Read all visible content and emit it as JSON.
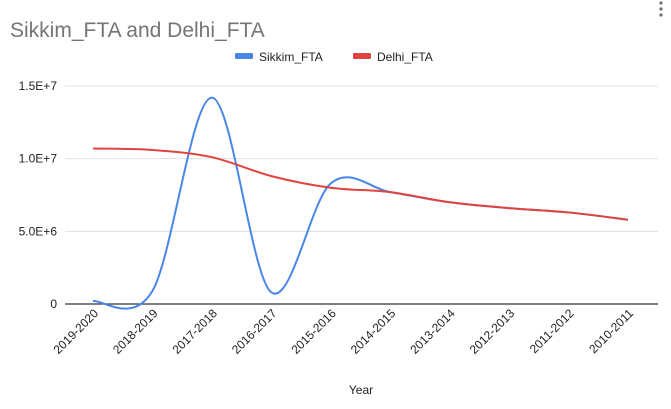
{
  "chart_data": {
    "type": "line",
    "title": "Sikkim_FTA and Delhi_FTA",
    "xlabel": "Year",
    "ylabel": "",
    "categories": [
      "2019-2020",
      "2018-2019",
      "2017-2018",
      "2016-2017",
      "2015-2016",
      "2014-2015",
      "2013-2014",
      "2012-2013",
      "2011-2012",
      "2010-2011"
    ],
    "yticks": [
      {
        "value": 0,
        "label": "0"
      },
      {
        "value": 5000000,
        "label": "5.0E+6"
      },
      {
        "value": 10000000,
        "label": "1.0E+7"
      },
      {
        "value": 15000000,
        "label": "1.5E+7"
      }
    ],
    "ylim": [
      0,
      15000000
    ],
    "grid": true,
    "legend": "top",
    "series": [
      {
        "name": "Sikkim_FTA",
        "color": "#4a86e8",
        "values": [
          200000,
          900000,
          14200000,
          800000,
          8300000,
          7700000,
          7000000,
          6600000,
          6300000,
          5800000
        ]
      },
      {
        "name": "Delhi_FTA",
        "color": "#e0443e",
        "values": [
          10700000,
          10600000,
          10100000,
          8800000,
          8000000,
          7700000,
          7000000,
          6600000,
          6300000,
          5800000
        ]
      }
    ]
  },
  "menu_icon": "more-vertical-icon"
}
